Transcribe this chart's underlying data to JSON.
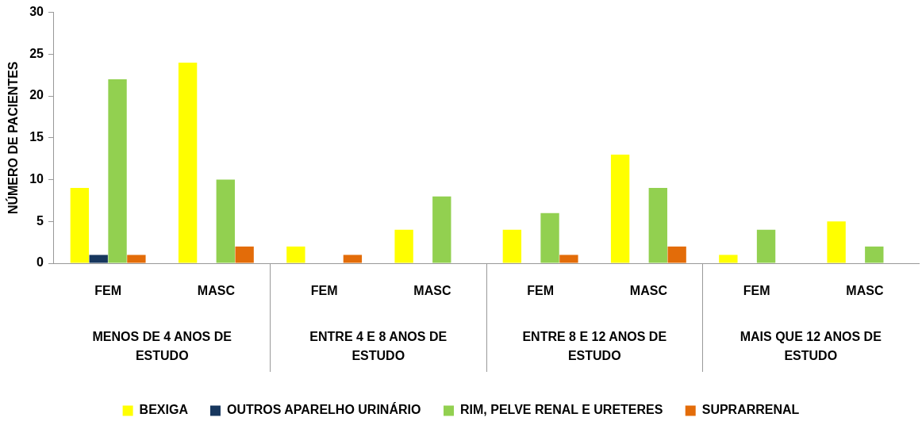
{
  "chart_data": {
    "type": "bar",
    "ylabel": "NÚMERO DE PACIENTES",
    "categories": [
      "FEM",
      "MASC",
      "FEM",
      "MASC",
      "FEM",
      "MASC",
      "FEM",
      "MASC"
    ],
    "annotations": [
      "MENOS DE 4 ANOS DE ESTUDO",
      "ENTRE 4 E 8 ANOS DE ESTUDO",
      "ENTRE 8 E 12 ANOS DE ESTUDO",
      "MAIS QUE 12 ANOS DE ESTUDO"
    ],
    "series": [
      {
        "name": "BEXIGA",
        "color": "#ffff00",
        "values": [
          9,
          24,
          2,
          4,
          4,
          13,
          1,
          5
        ]
      },
      {
        "name": "OUTROS APARELHO URINÁRIO",
        "color": "#17375e",
        "values": [
          1,
          null,
          null,
          null,
          null,
          null,
          null,
          null
        ]
      },
      {
        "name": "RIM, PELVE RENAL E URETERES",
        "color": "#92d050",
        "values": [
          22,
          10,
          null,
          8,
          6,
          9,
          4,
          2
        ]
      },
      {
        "name": "SUPRARRENAL",
        "color": "#e36c09",
        "values": [
          1,
          2,
          1,
          null,
          1,
          2,
          null,
          null
        ]
      }
    ],
    "ylim": [
      0,
      30
    ],
    "yticks": [
      0,
      5,
      10,
      15,
      20,
      25,
      30
    ],
    "grid": false,
    "legend": "bottom"
  }
}
